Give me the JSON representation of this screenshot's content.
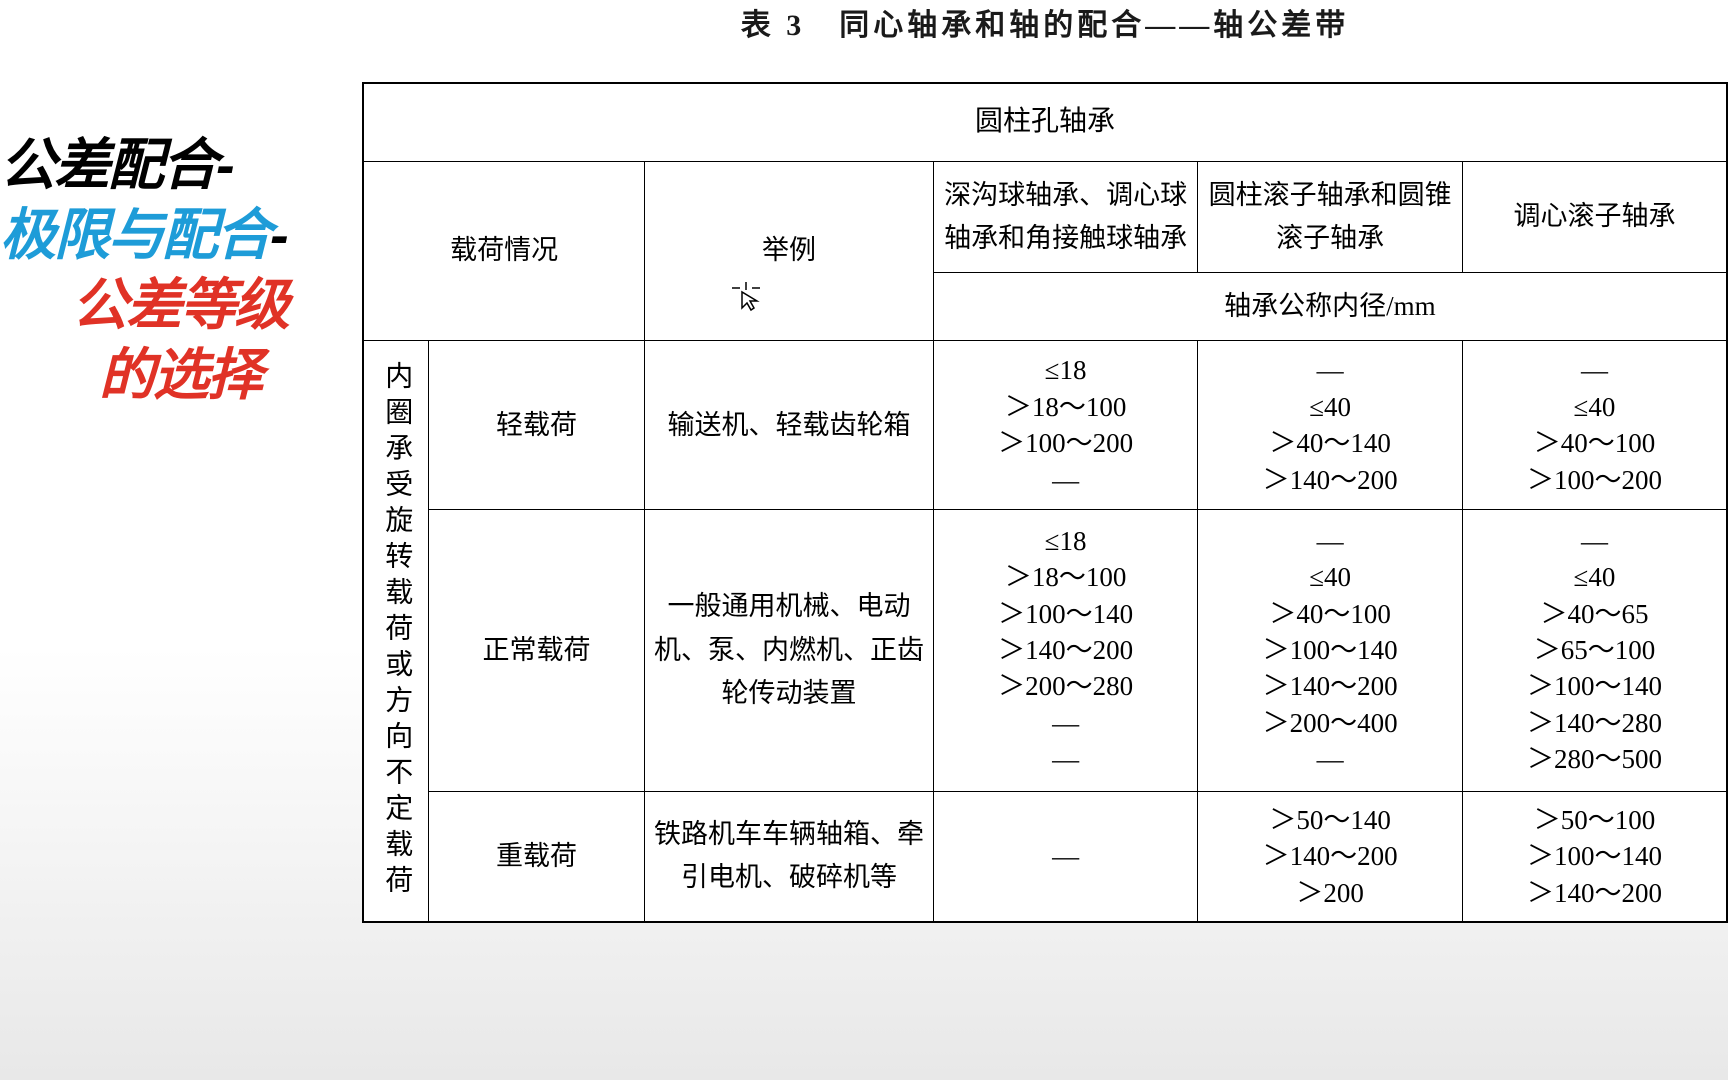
{
  "sidebar": {
    "line1_black": "公差配合-",
    "line2_blue": "极限与配合",
    "line2_black": "-",
    "line3_red": "公差等级",
    "line4_red": "的选择"
  },
  "colors": {
    "black": "#000000",
    "blue": "#1e9cd8",
    "red": "#e03226",
    "border": "#000000",
    "bg": "#ffffff"
  },
  "table": {
    "title_prefix": "表 3　同心轴承和轴的配合——轴公差带",
    "header_main": "圆柱孔轴承",
    "col_load": "载荷情况",
    "col_example": "举例",
    "col_h1": "深沟球轴承、调心球轴承和角接触球轴承",
    "col_h2": "圆柱滚子轴承和圆锥滚子轴承",
    "col_h3": "调心滚子轴承",
    "sub_header": "轴承公称内径/mm",
    "row_label_vertical": "内圈承受旋转载荷或方向不定载荷",
    "rows": [
      {
        "load": "轻载荷",
        "example": "输送机、轻载齿轮箱",
        "c1": "≤18\n＞18～100\n＞100～200\n—",
        "c2": "—\n≤40\n＞40～140\n＞140～200",
        "c3": "—\n≤40\n＞40～100\n＞100～200"
      },
      {
        "load": "正常载荷",
        "example": "一般通用机械、电动机、泵、内燃机、正齿轮传动装置",
        "c1": "≤18\n＞18～100\n＞100～140\n＞140～200\n＞200～280\n—\n—",
        "c2": "—\n≤40\n＞40～100\n＞100～140\n＞140～200\n＞200～400\n—",
        "c3": "—\n≤40\n＞40～65\n＞65～100\n＞100～140\n＞140～280\n＞280～500"
      },
      {
        "load": "重载荷",
        "example": "铁路机车车辆轴箱、牵引电机、破碎机等",
        "c1": "—",
        "c2": "＞50～140\n＞140～200\n＞200",
        "c3": "＞50～100\n＞100～140\n＞140～200"
      }
    ]
  }
}
